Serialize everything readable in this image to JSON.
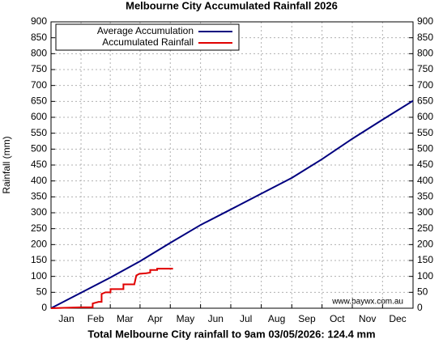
{
  "chart_data": {
    "type": "line",
    "title": "Melbourne City Accumulated Rainfall 2026",
    "ylabel": "Rainfall (mm)",
    "footer": "Total Melbourne City rainfall to 9am 03/05/2026: 124.4 mm",
    "watermark": "www.baywx.com.au",
    "xlim": [
      0,
      365
    ],
    "xticks": [
      {
        "value": 15.5,
        "label": "Jan"
      },
      {
        "value": 45,
        "label": "Feb"
      },
      {
        "value": 74.5,
        "label": "Mar"
      },
      {
        "value": 105,
        "label": "Apr"
      },
      {
        "value": 135.5,
        "label": "May"
      },
      {
        "value": 166,
        "label": "Jun"
      },
      {
        "value": 196.5,
        "label": "Jul"
      },
      {
        "value": 227.5,
        "label": "Aug"
      },
      {
        "value": 258,
        "label": "Sep"
      },
      {
        "value": 288.5,
        "label": "Oct"
      },
      {
        "value": 319,
        "label": "Nov"
      },
      {
        "value": 349.5,
        "label": "Dec"
      }
    ],
    "ylim": [
      0,
      900
    ],
    "yticks": [
      0,
      50,
      100,
      150,
      200,
      250,
      300,
      350,
      400,
      450,
      500,
      550,
      600,
      650,
      700,
      750,
      800,
      850,
      900
    ],
    "y2lim": [
      0,
      900
    ],
    "y2ticks": [
      0,
      50,
      100,
      150,
      200,
      250,
      300,
      350,
      400,
      450,
      500,
      550,
      600,
      650,
      700,
      750,
      800,
      850,
      900
    ],
    "grid": true,
    "legend": "upper left",
    "series": [
      {
        "name": "Average Accumulation",
        "color": "#00007f",
        "x": [
          0,
          31,
          59,
          90,
          120,
          151,
          181,
          212,
          243,
          273,
          304,
          334,
          365
        ],
        "values": [
          0,
          50,
          95,
          148,
          205,
          262,
          310,
          360,
          410,
          468,
          533,
          592,
          652
        ]
      },
      {
        "name": "Accumulated Rainfall",
        "color": "#e00000",
        "x": [
          0,
          20,
          30,
          42,
          42,
          48,
          51,
          51,
          55,
          60,
          60,
          73,
          73,
          84,
          86,
          89,
          96,
          100,
          100,
          107,
          107,
          123
        ],
        "values": [
          0,
          2,
          3,
          3,
          15,
          20,
          20,
          45,
          50,
          50,
          60,
          60,
          75,
          75,
          103,
          108,
          110,
          112,
          120,
          120,
          124.4,
          124.4
        ]
      }
    ]
  }
}
